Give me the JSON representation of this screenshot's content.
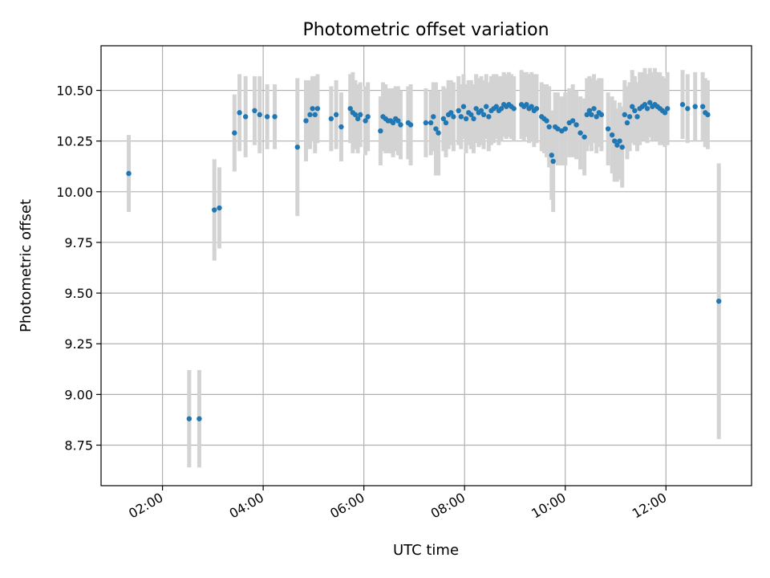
{
  "chart_data": {
    "type": "scatter",
    "title": "Photometric offset variation",
    "xlabel": "UTC time",
    "ylabel": "Photometric offset",
    "x_unit": "hours",
    "xlim": [
      0.78,
      13.7
    ],
    "ylim": [
      8.55,
      10.72
    ],
    "xticks": [
      {
        "value": 2,
        "label": "02:00"
      },
      {
        "value": 4,
        "label": "04:00"
      },
      {
        "value": 6,
        "label": "06:00"
      },
      {
        "value": 8,
        "label": "08:00"
      },
      {
        "value": 10,
        "label": "10:00"
      },
      {
        "value": 12,
        "label": "12:00"
      }
    ],
    "yticks": [
      {
        "value": 8.75,
        "label": "8.75"
      },
      {
        "value": 9.0,
        "label": "9.00"
      },
      {
        "value": 9.25,
        "label": "9.25"
      },
      {
        "value": 9.5,
        "label": "9.50"
      },
      {
        "value": 9.75,
        "label": "9.75"
      },
      {
        "value": 10.0,
        "label": "10.00"
      },
      {
        "value": 10.25,
        "label": "10.25"
      },
      {
        "value": 10.5,
        "label": "10.50"
      }
    ],
    "grid": true,
    "point_color": "#1f77b4",
    "errorbar_color": "#d3d3d3",
    "series": [
      {
        "x": [
          1.33,
          2.53,
          2.73,
          3.03,
          3.13,
          3.43,
          3.53,
          3.65,
          3.83,
          3.93,
          4.08,
          4.23,
          4.68,
          4.85,
          4.93,
          4.98,
          5.03,
          5.08,
          5.35,
          5.45,
          5.55,
          5.73,
          5.78,
          5.83,
          5.88,
          5.93,
          6.03,
          6.08,
          6.33,
          6.38,
          6.43,
          6.48,
          6.53,
          6.58,
          6.63,
          6.68,
          6.73,
          6.88,
          6.93,
          7.23,
          7.33,
          7.38,
          7.43,
          7.48,
          7.58,
          7.63,
          7.68,
          7.73,
          7.78,
          7.88,
          7.93,
          7.98,
          8.03,
          8.08,
          8.13,
          8.18,
          8.23,
          8.28,
          8.33,
          8.38,
          8.43,
          8.48,
          8.53,
          8.58,
          8.63,
          8.68,
          8.73,
          8.78,
          8.83,
          8.88,
          8.93,
          8.98,
          9.13,
          9.18,
          9.23,
          9.28,
          9.33,
          9.38,
          9.43,
          9.53,
          9.58,
          9.63,
          9.68,
          9.73,
          9.76,
          9.8,
          9.85,
          9.93,
          10.0,
          10.08,
          10.15,
          10.22,
          10.3,
          10.38,
          10.43,
          10.48,
          10.52,
          10.57,
          10.62,
          10.67,
          10.72,
          10.85,
          10.93,
          10.98,
          11.03,
          11.08,
          11.13,
          11.18,
          11.23,
          11.28,
          11.33,
          11.38,
          11.43,
          11.48,
          11.53,
          11.58,
          11.63,
          11.68,
          11.73,
          11.78,
          11.83,
          11.88,
          11.93,
          11.98,
          12.03,
          12.33,
          12.43,
          12.58,
          12.73,
          12.78,
          12.83,
          13.05
        ],
        "y": [
          10.09,
          8.88,
          8.88,
          9.91,
          9.92,
          10.29,
          10.39,
          10.37,
          10.4,
          10.38,
          10.37,
          10.37,
          10.22,
          10.35,
          10.38,
          10.41,
          10.38,
          10.41,
          10.36,
          10.38,
          10.32,
          10.41,
          10.39,
          10.38,
          10.36,
          10.38,
          10.35,
          10.37,
          10.3,
          10.37,
          10.36,
          10.35,
          10.35,
          10.34,
          10.36,
          10.35,
          10.33,
          10.34,
          10.33,
          10.34,
          10.34,
          10.37,
          10.31,
          10.29,
          10.36,
          10.34,
          10.38,
          10.39,
          10.37,
          10.4,
          10.37,
          10.42,
          10.36,
          10.39,
          10.38,
          10.36,
          10.41,
          10.39,
          10.4,
          10.38,
          10.42,
          10.37,
          10.4,
          10.41,
          10.42,
          10.4,
          10.41,
          10.43,
          10.42,
          10.43,
          10.42,
          10.41,
          10.43,
          10.42,
          10.43,
          10.41,
          10.42,
          10.4,
          10.41,
          10.37,
          10.36,
          10.35,
          10.32,
          10.18,
          10.15,
          10.32,
          10.31,
          10.3,
          10.31,
          10.34,
          10.35,
          10.33,
          10.29,
          10.27,
          10.38,
          10.4,
          10.38,
          10.41,
          10.37,
          10.39,
          10.38,
          10.31,
          10.28,
          10.25,
          10.23,
          10.25,
          10.22,
          10.38,
          10.34,
          10.37,
          10.42,
          10.4,
          10.37,
          10.41,
          10.42,
          10.43,
          10.41,
          10.44,
          10.42,
          10.43,
          10.42,
          10.41,
          10.4,
          10.39,
          10.41,
          10.43,
          10.41,
          10.42,
          10.42,
          10.39,
          10.38,
          9.46
        ],
        "y_err": [
          0.19,
          0.24,
          0.24,
          0.25,
          0.2,
          0.19,
          0.19,
          0.2,
          0.17,
          0.19,
          0.16,
          0.16,
          0.34,
          0.2,
          0.17,
          0.16,
          0.19,
          0.17,
          0.16,
          0.17,
          0.17,
          0.17,
          0.2,
          0.17,
          0.17,
          0.16,
          0.17,
          0.17,
          0.17,
          0.17,
          0.17,
          0.16,
          0.16,
          0.17,
          0.16,
          0.17,
          0.17,
          0.18,
          0.2,
          0.17,
          0.16,
          0.17,
          0.23,
          0.21,
          0.16,
          0.17,
          0.17,
          0.16,
          0.17,
          0.17,
          0.16,
          0.16,
          0.17,
          0.16,
          0.17,
          0.17,
          0.17,
          0.17,
          0.17,
          0.17,
          0.16,
          0.17,
          0.17,
          0.17,
          0.16,
          0.17,
          0.16,
          0.16,
          0.16,
          0.16,
          0.16,
          0.16,
          0.17,
          0.17,
          0.16,
          0.17,
          0.17,
          0.18,
          0.17,
          0.17,
          0.17,
          0.18,
          0.2,
          0.22,
          0.25,
          0.17,
          0.18,
          0.17,
          0.18,
          0.17,
          0.18,
          0.17,
          0.18,
          0.19,
          0.18,
          0.17,
          0.18,
          0.17,
          0.18,
          0.17,
          0.18,
          0.18,
          0.19,
          0.2,
          0.18,
          0.19,
          0.2,
          0.17,
          0.18,
          0.17,
          0.18,
          0.17,
          0.17,
          0.18,
          0.17,
          0.18,
          0.17,
          0.17,
          0.17,
          0.18,
          0.17,
          0.18,
          0.17,
          0.17,
          0.18,
          0.17,
          0.17,
          0.17,
          0.17,
          0.17,
          0.17,
          0.68
        ]
      }
    ]
  }
}
